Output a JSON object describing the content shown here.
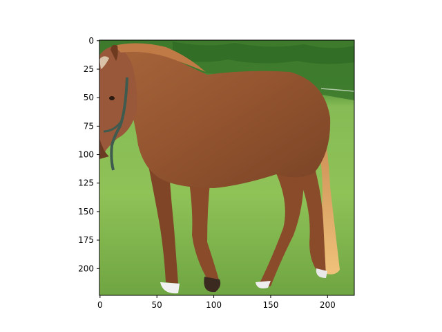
{
  "chart_data": {
    "type": "image",
    "xlim": [
      -0.5,
      223.5
    ],
    "ylim": [
      223.5,
      -0.5
    ],
    "x_ticks": [
      0,
      50,
      100,
      150,
      200
    ],
    "y_ticks": [
      0,
      25,
      50,
      75,
      100,
      125,
      150,
      175,
      200
    ],
    "grid": false,
    "colors": {
      "axes_frame": "#000000",
      "sky_green": "#4f8a3a",
      "grass": "#8cc050",
      "horse_coat": "#9a5a34",
      "mane_tail": "#e0b070"
    }
  }
}
